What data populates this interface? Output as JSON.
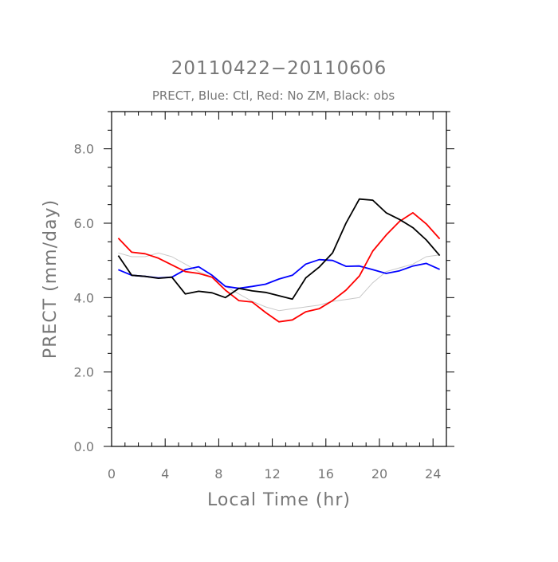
{
  "chart_data": {
    "type": "line",
    "title": "20110422−20110606",
    "subtitle": "PRECT, Blue: Ctl, Red: No ZM, Black: obs",
    "xlabel": "Local Time (hr)",
    "ylabel": "PRECT (mm/day)",
    "xlim": [
      0,
      25
    ],
    "ylim": [
      0,
      9
    ],
    "x_ticks": [
      0,
      4,
      8,
      12,
      16,
      20,
      24
    ],
    "x_tick_labels": [
      "0",
      "4",
      "8",
      "12",
      "16",
      "20",
      "24"
    ],
    "y_ticks": [
      0,
      2,
      4,
      6,
      8
    ],
    "y_tick_labels": [
      "0.0",
      "2.0",
      "4.0",
      "6.0",
      "8.0"
    ],
    "grid": false,
    "series": [
      {
        "color": "#c8c8c8",
        "x": [
          0.5,
          1.5,
          2.5,
          3.5,
          4.5,
          5.5,
          6.5,
          7.5,
          8.5,
          9.5,
          10.5,
          11.5,
          12.5,
          13.5,
          14.5,
          15.5,
          16.5,
          17.5,
          18.5,
          19.5,
          20.5,
          21.5,
          22.5,
          23.5,
          24.5
        ],
        "values": [
          5.2,
          5.1,
          5.1,
          5.2,
          5.1,
          4.9,
          4.7,
          4.55,
          4.3,
          4.1,
          3.9,
          3.75,
          3.65,
          3.7,
          3.75,
          3.8,
          3.9,
          3.95,
          4.0,
          4.4,
          4.7,
          4.8,
          4.9,
          5.1,
          5.15
        ]
      },
      {
        "color": "#0000ff",
        "x": [
          0.5,
          1.5,
          2.5,
          3.5,
          4.5,
          5.5,
          6.5,
          7.5,
          8.5,
          9.5,
          10.5,
          11.5,
          12.5,
          13.5,
          14.5,
          15.5,
          16.5,
          17.5,
          18.5,
          19.5,
          20.5,
          21.5,
          22.5,
          23.5,
          24.5
        ],
        "values": [
          4.75,
          4.6,
          4.57,
          4.53,
          4.55,
          4.75,
          4.83,
          4.6,
          4.3,
          4.25,
          4.3,
          4.36,
          4.5,
          4.6,
          4.9,
          5.02,
          5.0,
          4.84,
          4.85,
          4.75,
          4.65,
          4.72,
          4.85,
          4.92,
          4.76
        ]
      },
      {
        "color": "#ff0000",
        "x": [
          0.5,
          1.5,
          2.5,
          3.5,
          4.5,
          5.5,
          6.5,
          7.5,
          8.5,
          9.5,
          10.5,
          11.5,
          12.5,
          13.5,
          14.5,
          15.5,
          16.5,
          17.5,
          18.5,
          19.5,
          20.5,
          21.5,
          22.5,
          23.5,
          24.5
        ],
        "values": [
          5.6,
          5.22,
          5.18,
          5.06,
          4.88,
          4.7,
          4.65,
          4.55,
          4.2,
          3.92,
          3.88,
          3.6,
          3.35,
          3.4,
          3.62,
          3.7,
          3.92,
          4.2,
          4.58,
          5.25,
          5.68,
          6.05,
          6.28,
          5.98,
          5.58
        ]
      },
      {
        "color": "#000000",
        "x": [
          0.5,
          1.5,
          2.5,
          3.5,
          4.5,
          5.5,
          6.5,
          7.5,
          8.5,
          9.5,
          10.5,
          11.5,
          12.5,
          13.5,
          14.5,
          15.5,
          16.5,
          17.5,
          18.5,
          19.5,
          20.5,
          21.5,
          22.5,
          23.5,
          24.5
        ],
        "values": [
          5.13,
          4.6,
          4.57,
          4.52,
          4.55,
          4.1,
          4.17,
          4.13,
          4.0,
          4.25,
          4.18,
          4.14,
          4.05,
          3.96,
          4.53,
          4.82,
          5.2,
          6.0,
          6.65,
          6.62,
          6.28,
          6.1,
          5.88,
          5.55,
          5.13
        ]
      }
    ]
  }
}
